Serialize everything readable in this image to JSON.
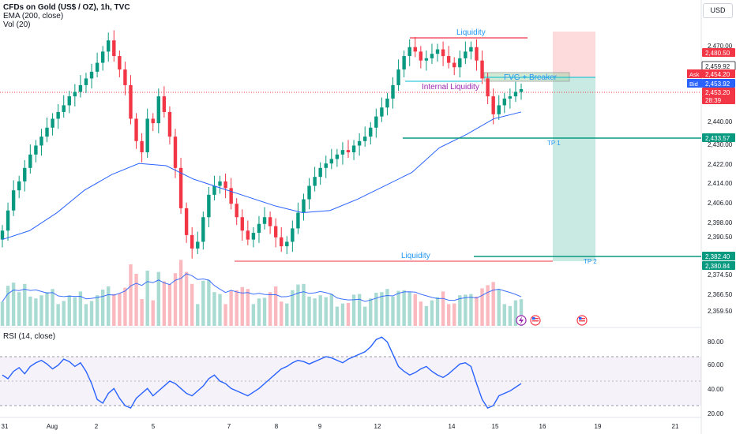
{
  "header": {
    "symbol_line": "CFDs on Gold (US$ / OZ), 1h, TVC",
    "ema_label": "EMA (200, close)",
    "vol_label": "Vol (20)",
    "currency": "USD"
  },
  "rsi": {
    "label": "RSI (14, close)",
    "ticks": [
      "80.00",
      "60.00",
      "40.00",
      "20.00"
    ]
  },
  "price_axis": {
    "ticks": [
      "2,470.00",
      "2,440.00",
      "2,430.00",
      "2,422.00",
      "2,414.00",
      "2,406.00",
      "2,398.00",
      "2,390.50",
      "2,374.50",
      "2,366.50",
      "2,359.50"
    ],
    "badges": [
      {
        "text": "2,480.50",
        "color": "#f23645",
        "kind": "level"
      },
      {
        "text": "2,459.92",
        "color": "#ffffff",
        "kind": "outline"
      },
      {
        "text": "2,454.20",
        "color": "#f23645",
        "kind": "ask",
        "side": "Ask"
      },
      {
        "text": "2,453.92",
        "color": "#2962ff",
        "kind": "bid",
        "side": "Bid"
      },
      {
        "text": "2,453.20",
        "color": "#f23645",
        "kind": "price"
      },
      {
        "text": "28:39",
        "color": "#f23645",
        "kind": "countdown"
      },
      {
        "text": "2,433.57",
        "color": "#089981",
        "kind": "level"
      },
      {
        "text": "2,382.40",
        "color": "#089981",
        "kind": "level"
      },
      {
        "text": "2,380.84",
        "color": "#089981",
        "kind": "level"
      }
    ]
  },
  "time_axis": {
    "labels": [
      "31",
      "Aug",
      "2",
      "5",
      "7",
      "8",
      "9",
      "12",
      "14",
      "15",
      "16",
      "19",
      "21"
    ]
  },
  "annotations": {
    "liquidity_top": "Liquidity",
    "internal_liquidity": "Internal Liquidity",
    "fvg_breaker": "FVG + Breaker",
    "tp1": "TP 1",
    "liquidity_bottom": "Liquidity",
    "tp2": "TP 2"
  },
  "chart_data": {
    "type": "candlestick",
    "ylim": [
      2352,
      2486
    ],
    "current_price": 2453.2,
    "ema200": [
      2386,
      2390,
      2398,
      2408,
      2415,
      2420,
      2419,
      2413,
      2409,
      2405,
      2401,
      2398,
      2399,
      2404,
      2410,
      2416,
      2427,
      2433,
      2440,
      2443
    ],
    "closes": [
      2390,
      2399,
      2408,
      2412,
      2418,
      2424,
      2428,
      2432,
      2436,
      2440,
      2443,
      2446,
      2450,
      2452,
      2455,
      2458,
      2461,
      2465,
      2470,
      2475,
      2468,
      2462,
      2455,
      2440,
      2430,
      2425,
      2440,
      2438,
      2450,
      2443,
      2432,
      2418,
      2400,
      2388,
      2382,
      2385,
      2396,
      2406,
      2410,
      2412,
      2409,
      2402,
      2396,
      2390,
      2386,
      2389,
      2393,
      2396,
      2392,
      2387,
      2383,
      2385,
      2391,
      2398,
      2404,
      2410,
      2414,
      2418,
      2420,
      2422,
      2424,
      2426,
      2425,
      2428,
      2430,
      2432,
      2436,
      2441,
      2445,
      2449,
      2455,
      2462,
      2468,
      2472,
      2470,
      2466,
      2467,
      2469,
      2471,
      2468,
      2465,
      2463,
      2467,
      2470,
      2472,
      2466,
      2458,
      2450,
      2442,
      2446,
      2449,
      2450,
      2452,
      2453.2
    ],
    "rsi": [
      55,
      52,
      58,
      61,
      56,
      62,
      65,
      67,
      64,
      60,
      63,
      68,
      66,
      62,
      65,
      58,
      48,
      35,
      32,
      40,
      44,
      36,
      30,
      28,
      36,
      40,
      44,
      38,
      42,
      46,
      50,
      48,
      44,
      40,
      38,
      42,
      46,
      52,
      55,
      50,
      48,
      44,
      42,
      40,
      38,
      41,
      44,
      48,
      52,
      56,
      60,
      62,
      65,
      67,
      66,
      64,
      66,
      68,
      70,
      69,
      67,
      65,
      68,
      70,
      72,
      74,
      78,
      84,
      86,
      82,
      72,
      62,
      58,
      55,
      57,
      60,
      62,
      58,
      55,
      53,
      56,
      60,
      64,
      65,
      62,
      48,
      35,
      28,
      30,
      38,
      40,
      42,
      45,
      48
    ],
    "levels": [
      {
        "name": "liquidity-top",
        "y_from": 2477.8,
        "color": "#f23645"
      },
      {
        "name": "tp1",
        "y_from": 2433.57,
        "color": "#089981"
      },
      {
        "name": "liquidity-bottom",
        "y_from": 2381.6,
        "color": "#f23645"
      },
      {
        "name": "tp2",
        "y_from": 2382.4,
        "color": "#089981"
      }
    ],
    "trade": {
      "entry": 2459.9,
      "stop": 2480.5,
      "target": 2380.84
    }
  }
}
